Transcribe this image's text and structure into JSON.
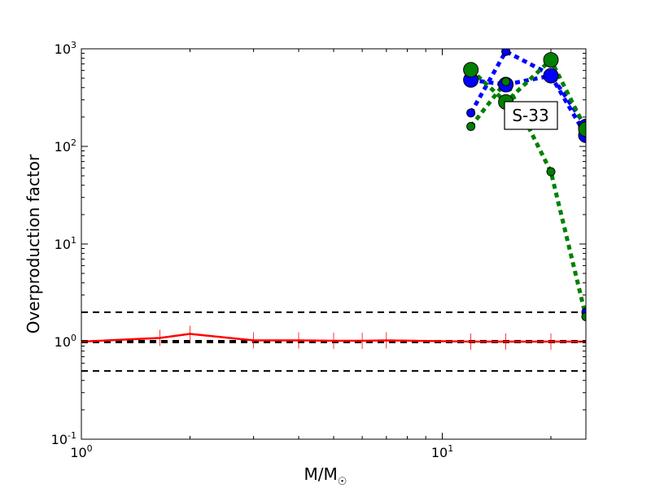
{
  "chart_data": {
    "type": "line",
    "xscale": "log",
    "yscale": "log",
    "xlim": [
      1,
      25
    ],
    "ylim": [
      0.1,
      1000
    ],
    "xlabel": {
      "base": "M/M",
      "sub": "☉"
    },
    "ylabel": "Overproduction factor",
    "x_ticks": [
      {
        "base": "10",
        "exp": "0",
        "value": 1
      },
      {
        "base": "10",
        "exp": "1",
        "value": 10
      }
    ],
    "y_ticks": [
      {
        "base": "10",
        "exp": "-1",
        "value": 0.1
      },
      {
        "base": "10",
        "exp": "0",
        "value": 1
      },
      {
        "base": "10",
        "exp": "1",
        "value": 10
      },
      {
        "base": "10",
        "exp": "2",
        "value": 100
      },
      {
        "base": "10",
        "exp": "3",
        "value": 1000
      }
    ],
    "annotation": "S-33",
    "reference_lines": [
      {
        "y": 2,
        "color": "#000000",
        "width": 2
      },
      {
        "y": 1,
        "color": "#000000",
        "width": 4
      },
      {
        "y": 0.5,
        "color": "#000000",
        "width": 2
      }
    ],
    "series": [
      {
        "style": "solid",
        "color": "#ff0000",
        "width": 2.5,
        "markers": "vline",
        "x": [
          1,
          1.65,
          2,
          3,
          4,
          5,
          6,
          7,
          12,
          15,
          20,
          25
        ],
        "y": [
          1.0,
          1.09,
          1.2,
          1.03,
          1.03,
          1.02,
          1.02,
          1.03,
          1.0,
          1.0,
          1.0,
          1.0
        ]
      },
      {
        "style": "dotted",
        "color": "#0000ff",
        "width": 5,
        "x": [
          12,
          15,
          20,
          25
        ],
        "y": [
          220,
          940,
          540,
          160
        ]
      },
      {
        "style": "dotted",
        "color": "#0000ff",
        "width": 5,
        "x": [
          12,
          15,
          20,
          25
        ],
        "y": [
          480,
          430,
          530,
          130
        ]
      },
      {
        "style": "dotted",
        "color": "#0000ff",
        "width": 5,
        "x": [
          25
        ],
        "y": [
          2.0
        ]
      },
      {
        "style": "dotted",
        "color": "#008000",
        "width": 5,
        "x": [
          12,
          15,
          20,
          25
        ],
        "y": [
          160,
          460,
          55,
          1.8
        ]
      },
      {
        "style": "dotted",
        "color": "#008000",
        "width": 5,
        "x": [
          12,
          15,
          20,
          25
        ],
        "y": [
          610,
          285,
          770,
          150
        ]
      }
    ],
    "markers": [
      {
        "x": 12,
        "y": 220,
        "color": "#0000ff",
        "size": 5
      },
      {
        "x": 12,
        "y": 480,
        "color": "#0000ff",
        "size": 9
      },
      {
        "x": 12,
        "y": 160,
        "color": "#008000",
        "size": 5
      },
      {
        "x": 12,
        "y": 610,
        "color": "#008000",
        "size": 9
      },
      {
        "x": 15,
        "y": 940,
        "color": "#0000ff",
        "size": 5
      },
      {
        "x": 15,
        "y": 430,
        "color": "#0000ff",
        "size": 9
      },
      {
        "x": 15,
        "y": 460,
        "color": "#008000",
        "size": 5
      },
      {
        "x": 15,
        "y": 285,
        "color": "#008000",
        "size": 9
      },
      {
        "x": 20,
        "y": 540,
        "color": "#0000ff",
        "size": 5
      },
      {
        "x": 20,
        "y": 530,
        "color": "#0000ff",
        "size": 9
      },
      {
        "x": 20,
        "y": 55,
        "color": "#008000",
        "size": 5
      },
      {
        "x": 20,
        "y": 770,
        "color": "#008000",
        "size": 9
      },
      {
        "x": 25,
        "y": 160,
        "color": "#0000ff",
        "size": 9
      },
      {
        "x": 25,
        "y": 130,
        "color": "#0000ff",
        "size": 9
      },
      {
        "x": 25,
        "y": 2.0,
        "color": "#0000ff",
        "size": 5
      },
      {
        "x": 25,
        "y": 1.8,
        "color": "#008000",
        "size": 5
      },
      {
        "x": 25,
        "y": 150,
        "color": "#008000",
        "size": 9
      }
    ]
  }
}
